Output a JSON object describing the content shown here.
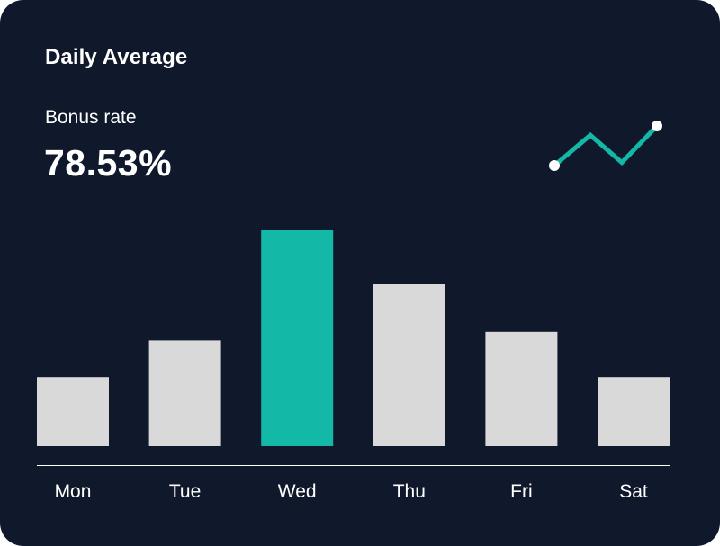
{
  "card": {
    "title": "Daily Average",
    "metric_label": "Bonus rate",
    "metric_value": "78.53%"
  },
  "colors": {
    "background": "#0f192b",
    "bar_default": "#d9d9d9",
    "bar_highlight": "#14b8a6",
    "sparkline": "#14b8a6",
    "sparkline_marker": "#ffffff",
    "axis": "#ffffff"
  },
  "sparkline": {
    "icon": "trend-up-sparkline-icon",
    "values": [
      0,
      1,
      0.1,
      1.3
    ]
  },
  "chart_data": {
    "type": "bar",
    "title": "Daily Average",
    "xlabel": "",
    "ylabel": "",
    "categories": [
      "Mon",
      "Tue",
      "Wed",
      "Thu",
      "Fri",
      "Sat"
    ],
    "values": [
      32,
      49,
      100,
      75,
      53,
      32
    ],
    "highlight_index": 2,
    "ylim": [
      0,
      100
    ],
    "grid": false,
    "legend": "none",
    "note": "Relative bar heights; no y-axis scale shown"
  }
}
